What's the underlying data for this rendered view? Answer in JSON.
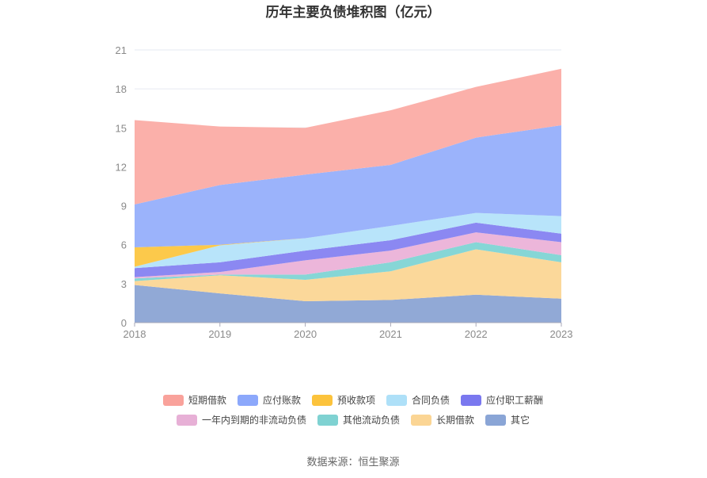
{
  "chart_data": {
    "type": "area",
    "stacked": true,
    "title": "历年主要负债堆积图（亿元）",
    "x": [
      "2018",
      "2019",
      "2020",
      "2021",
      "2022",
      "2023"
    ],
    "y_ticks": [
      "0",
      "3",
      "6",
      "9",
      "12",
      "15",
      "18",
      "21"
    ],
    "ylim": [
      0,
      21
    ],
    "grid": true,
    "legend_position": "bottom",
    "series": [
      {
        "name": "其它",
        "color": "#91a9d6",
        "values": [
          2.9,
          2.25,
          1.65,
          1.75,
          2.15,
          1.85
        ]
      },
      {
        "name": "长期借款",
        "color": "#fbd89a",
        "values": [
          0.3,
          1.4,
          1.65,
          2.2,
          3.5,
          2.8
        ]
      },
      {
        "name": "其他流动负债",
        "color": "#86d6d6",
        "values": [
          0.2,
          0.05,
          0.4,
          0.7,
          0.55,
          0.55
        ]
      },
      {
        "name": "一年内到期的非流动负债",
        "color": "#ecb6da",
        "values": [
          0.1,
          0.2,
          1.1,
          0.9,
          0.75,
          1.0
        ]
      },
      {
        "name": "应付职工薪酬",
        "color": "#8b88f2",
        "values": [
          0.7,
          0.75,
          0.75,
          0.8,
          0.75,
          0.65
        ]
      },
      {
        "name": "合同负债",
        "color": "#b8e4fa",
        "values": [
          0.1,
          1.3,
          0.95,
          1.1,
          0.75,
          1.35
        ]
      },
      {
        "name": "预收款项",
        "color": "#fcc94b",
        "values": [
          1.5,
          0.05,
          0.0,
          0.0,
          0.0,
          0.0
        ]
      },
      {
        "name": "应付账款",
        "color": "#9bb3fb",
        "values": [
          3.3,
          4.6,
          4.9,
          4.7,
          5.8,
          7.0
        ]
      },
      {
        "name": "短期借款",
        "color": "#fbb0aa",
        "values": [
          6.5,
          4.5,
          3.6,
          4.2,
          3.9,
          4.35
        ]
      }
    ],
    "legend": [
      {
        "name": "短期借款",
        "color": "#f9a29b"
      },
      {
        "name": "应付账款",
        "color": "#8ca8fb"
      },
      {
        "name": "预收款项",
        "color": "#fcc33c"
      },
      {
        "name": "合同负债",
        "color": "#aee0f8"
      },
      {
        "name": "应付职工薪酬",
        "color": "#7a78ef"
      },
      {
        "name": "一年内到期的非流动负债",
        "color": "#e7b0d6"
      },
      {
        "name": "其他流动负债",
        "color": "#7fd2d2"
      },
      {
        "name": "长期借款",
        "color": "#fbd594"
      },
      {
        "name": "其它",
        "color": "#8aa5d6"
      }
    ]
  },
  "source_text": "数据来源：恒生聚源"
}
